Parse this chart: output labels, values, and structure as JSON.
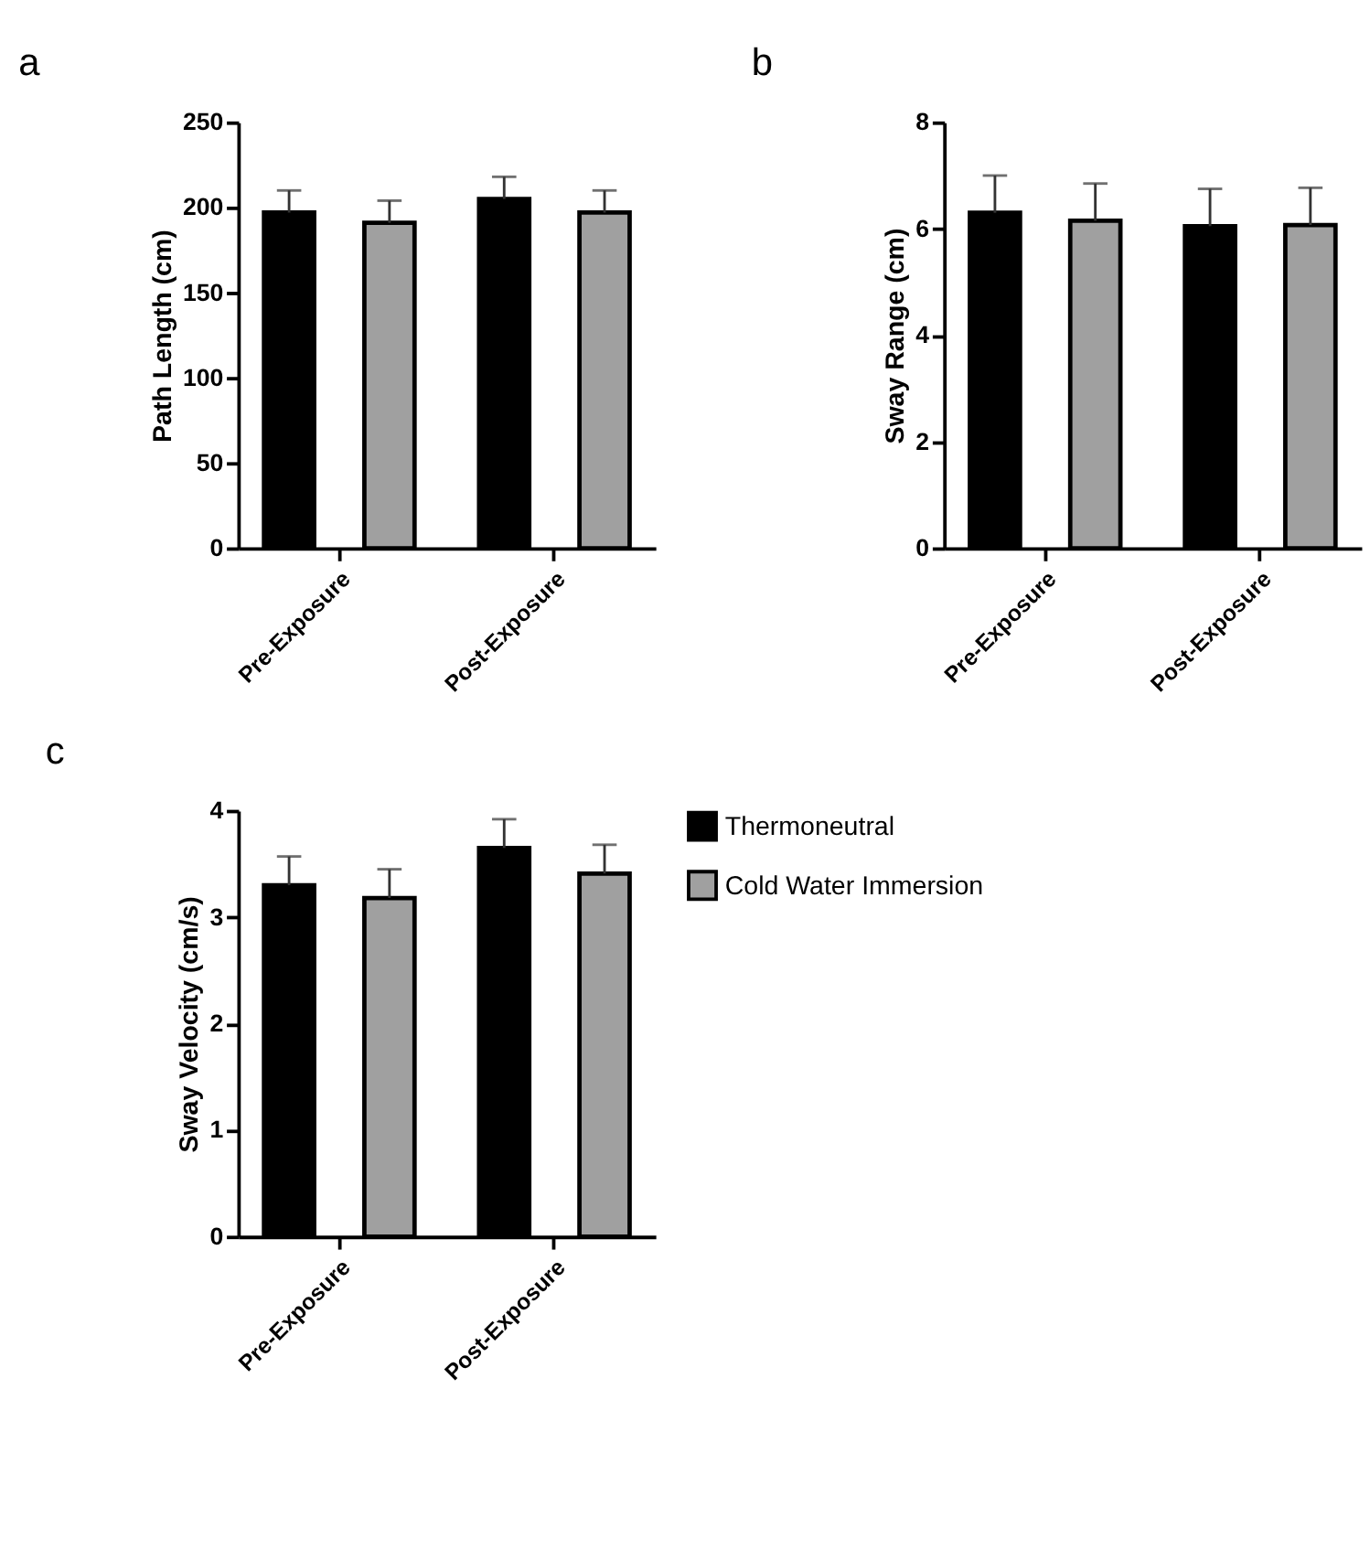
{
  "chart_data": [
    {
      "type": "bar",
      "title": "a",
      "ylabel": "Path  Length (cm)",
      "categories": [
        "Pre-Exposure",
        "Post-Exposure"
      ],
      "ylim": [
        0,
        250
      ],
      "yticks": [
        0,
        50,
        100,
        150,
        200,
        250
      ],
      "grid": false,
      "legend": false,
      "series": [
        {
          "color": "#000000",
          "values": [
            197,
            205
          ],
          "errors": [
            [
              197,
              210
            ],
            [
              205,
              218
            ]
          ]
        },
        {
          "color": "#a0a0a0",
          "values": [
            191,
            197
          ],
          "errors": [
            [
              191,
              204
            ],
            [
              197,
              210
            ]
          ]
        }
      ]
    },
    {
      "type": "bar",
      "title": "b",
      "ylabel": "Sway  Range (cm)",
      "categories": [
        "Pre-Exposure",
        "Post-Exposure"
      ],
      "ylim": [
        0,
        8
      ],
      "yticks": [
        0,
        2,
        4,
        6,
        8
      ],
      "grid": false,
      "legend": false,
      "series": [
        {
          "color": "#000000",
          "values": [
            6.3,
            6.05
          ],
          "errors": [
            [
              6.3,
              7.0
            ],
            [
              6.05,
              6.75
            ]
          ]
        },
        {
          "color": "#a0a0a0",
          "values": [
            6.15,
            6.07
          ],
          "errors": [
            [
              6.15,
              6.85
            ],
            [
              6.07,
              6.77
            ]
          ]
        }
      ]
    },
    {
      "type": "bar",
      "title": "c",
      "ylabel": "Sway  Velocity (cm/s)",
      "categories": [
        "Pre-Exposure",
        "Post-Exposure"
      ],
      "ylim": [
        0,
        4
      ],
      "yticks": [
        0,
        1,
        2,
        3,
        4
      ],
      "grid": false,
      "legend": "right",
      "series": [
        {
          "name": "Thermoneutral",
          "color": "#000000",
          "values": [
            3.3,
            3.65
          ],
          "errors": [
            [
              3.3,
              3.57
            ],
            [
              3.65,
              3.92
            ]
          ]
        },
        {
          "name": "Cold Water Immersion",
          "color": "#a0a0a0",
          "values": [
            3.18,
            3.41
          ],
          "errors": [
            [
              3.18,
              3.45
            ],
            [
              3.41,
              3.68
            ]
          ]
        }
      ]
    }
  ]
}
